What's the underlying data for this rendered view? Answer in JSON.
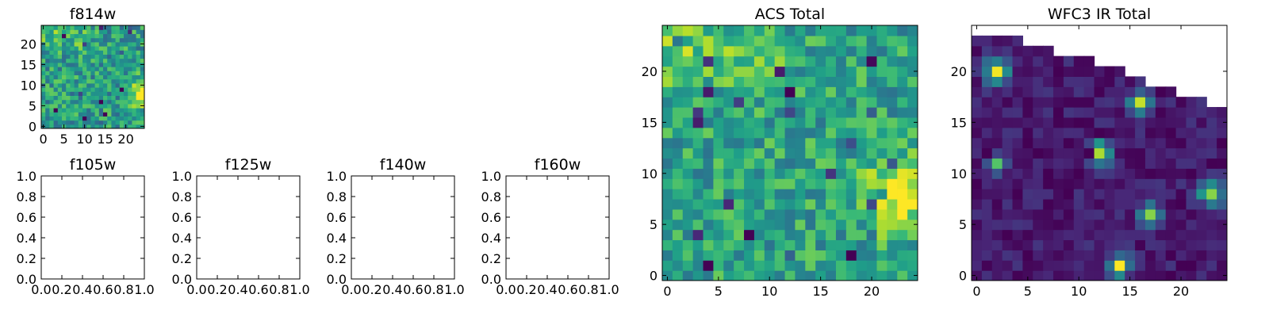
{
  "chart_data": [
    {
      "type": "heatmap",
      "title": "f814w",
      "xticks": [
        "0",
        "5",
        "10",
        "15",
        "20"
      ],
      "yticks": [
        "0",
        "5",
        "10",
        "15",
        "20"
      ],
      "xlim": [
        -0.5,
        24.5
      ],
      "ylim": [
        -0.5,
        24.5
      ],
      "colormap": "viridis",
      "seed": 11,
      "base": 0.55,
      "noise": 0.22,
      "blobs": [
        [
          24,
          8,
          2.2,
          0.5
        ],
        [
          2,
          23,
          3,
          0.15
        ],
        [
          9,
          22,
          2.5,
          0.12
        ]
      ]
    },
    {
      "type": "scatter",
      "title": "f105w",
      "xticks": [
        "0.0",
        "0.2",
        "0.4",
        "0.6",
        "0.8",
        "1.0"
      ],
      "yticks": [
        "0.0",
        "0.2",
        "0.4",
        "0.6",
        "0.8",
        "1.0"
      ],
      "xlim": [
        0,
        1
      ],
      "ylim": [
        0,
        1
      ]
    },
    {
      "type": "scatter",
      "title": "f125w",
      "xticks": [
        "0.0",
        "0.2",
        "0.4",
        "0.6",
        "0.8",
        "1.0"
      ],
      "yticks": [
        "0.0",
        "0.2",
        "0.4",
        "0.6",
        "0.8",
        "1.0"
      ],
      "xlim": [
        0,
        1
      ],
      "ylim": [
        0,
        1
      ]
    },
    {
      "type": "scatter",
      "title": "f140w",
      "xticks": [
        "0.0",
        "0.2",
        "0.4",
        "0.6",
        "0.8",
        "1.0"
      ],
      "yticks": [
        "0.0",
        "0.2",
        "0.4",
        "0.6",
        "0.8",
        "1.0"
      ],
      "xlim": [
        0,
        1
      ],
      "ylim": [
        0,
        1
      ]
    },
    {
      "type": "scatter",
      "title": "f160w",
      "xticks": [
        "0.0",
        "0.2",
        "0.4",
        "0.6",
        "0.8",
        "1.0"
      ],
      "yticks": [
        "0.0",
        "0.2",
        "0.4",
        "0.6",
        "0.8",
        "1.0"
      ],
      "xlim": [
        0,
        1
      ],
      "ylim": [
        0,
        1
      ]
    },
    {
      "type": "heatmap",
      "title": "ACS Total",
      "xticks": [
        "0",
        "5",
        "10",
        "15",
        "20"
      ],
      "yticks": [
        "0",
        "5",
        "10",
        "15",
        "20"
      ],
      "xlim": [
        -0.5,
        24.5
      ],
      "ylim": [
        -0.5,
        24.5
      ],
      "colormap": "viridis",
      "seed": 7,
      "base": 0.58,
      "noise": 0.2,
      "blobs": [
        [
          23,
          8,
          2.5,
          0.45
        ],
        [
          1,
          22,
          2.5,
          0.2
        ],
        [
          8,
          21,
          2.5,
          0.18
        ]
      ]
    },
    {
      "type": "heatmap",
      "title": "WFC3 IR Total",
      "xticks": [
        "0",
        "5",
        "10",
        "15",
        "20"
      ],
      "yticks": [
        "0",
        "5",
        "10",
        "15",
        "20"
      ],
      "xlim": [
        -0.5,
        24.5
      ],
      "ylim": [
        -0.5,
        24.5
      ],
      "colormap": "viridis",
      "seed": 3,
      "base": 0.08,
      "noise": 0.08,
      "blobs": [
        [
          2,
          20,
          0.8,
          0.9
        ],
        [
          16,
          17,
          0.7,
          0.8
        ],
        [
          12,
          12,
          0.8,
          0.8
        ],
        [
          2,
          11,
          0.6,
          0.6
        ],
        [
          23,
          8,
          0.8,
          0.8
        ],
        [
          17,
          6,
          0.7,
          0.8
        ],
        [
          14,
          1,
          0.7,
          0.9
        ]
      ],
      "masked_top_right": [
        [
          0,
          24
        ],
        [
          5,
          23
        ],
        [
          8,
          22
        ],
        [
          12,
          21
        ],
        [
          15,
          20
        ],
        [
          17,
          19
        ],
        [
          20,
          18
        ],
        [
          23,
          17
        ]
      ]
    }
  ]
}
